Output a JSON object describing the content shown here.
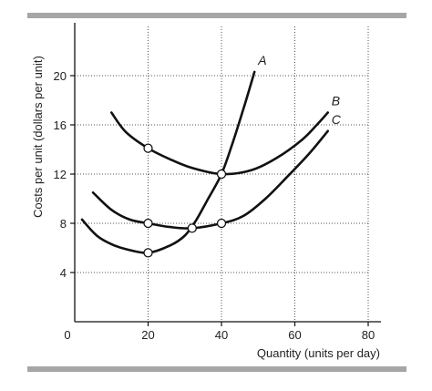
{
  "chart_data": {
    "type": "line",
    "xlabel": "Quantity (units per day)",
    "ylabel": "Costs per unit (dollars per unit)",
    "xlim": [
      0,
      80
    ],
    "ylim": [
      0,
      24
    ],
    "x_ticks": [
      "0",
      "20",
      "40",
      "60",
      "80"
    ],
    "y_ticks": [
      "4",
      "8",
      "12",
      "16",
      "20"
    ],
    "x_tick_values": [
      0,
      20,
      40,
      60,
      80
    ],
    "y_tick_values": [
      4,
      8,
      12,
      16,
      20
    ],
    "grid": "dotted",
    "series": [
      {
        "name": "A",
        "color": "#111111",
        "points": [
          [
            2,
            8.3
          ],
          [
            6,
            7.0
          ],
          [
            10,
            6.3
          ],
          [
            14,
            5.9
          ],
          [
            20,
            5.6
          ],
          [
            26,
            6.2
          ],
          [
            30,
            7.0
          ],
          [
            33,
            8.2
          ],
          [
            36,
            9.8
          ],
          [
            40,
            12.0
          ],
          [
            43,
            14.5
          ],
          [
            46,
            17.3
          ],
          [
            49,
            20.3
          ]
        ]
      },
      {
        "name": "B",
        "color": "#111111",
        "points": [
          [
            10,
            17.0
          ],
          [
            14,
            15.4
          ],
          [
            20,
            14.1
          ],
          [
            26,
            13.2
          ],
          [
            32,
            12.5
          ],
          [
            40,
            12.0
          ],
          [
            48,
            12.3
          ],
          [
            55,
            13.3
          ],
          [
            62,
            14.8
          ],
          [
            66,
            16.0
          ],
          [
            69,
            17.0
          ]
        ]
      },
      {
        "name": "C",
        "color": "#111111",
        "points": [
          [
            5,
            10.5
          ],
          [
            10,
            9.1
          ],
          [
            15,
            8.3
          ],
          [
            20,
            8.0
          ],
          [
            26,
            7.7
          ],
          [
            32,
            7.6
          ],
          [
            40,
            8.0
          ],
          [
            46,
            8.6
          ],
          [
            52,
            10.0
          ],
          [
            58,
            11.8
          ],
          [
            64,
            13.7
          ],
          [
            69,
            15.5
          ]
        ]
      }
    ],
    "markers": [
      [
        20,
        14.1
      ],
      [
        40,
        12.0
      ],
      [
        20,
        8.0
      ],
      [
        32,
        7.6
      ],
      [
        40,
        8.0
      ],
      [
        20,
        5.6
      ]
    ]
  }
}
